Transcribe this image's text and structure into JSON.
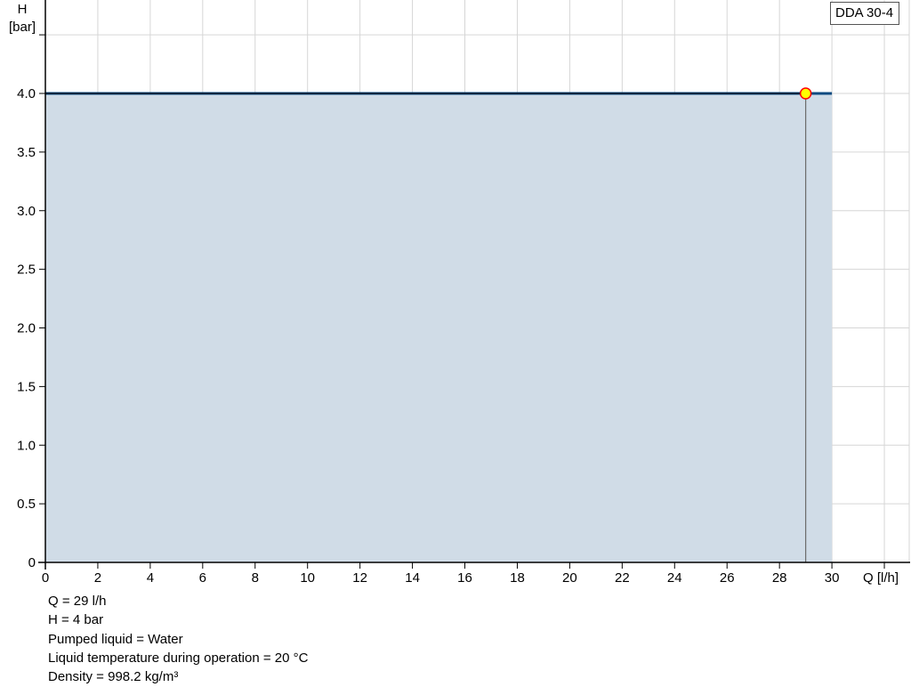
{
  "chart_data": {
    "type": "area",
    "xlabel": "Q [l/h]",
    "ylabel_line1": "H",
    "ylabel_line2": "[bar]",
    "xlim": [
      0,
      33
    ],
    "ylim": [
      0,
      4.8
    ],
    "xticks": [
      0,
      2,
      4,
      6,
      8,
      10,
      12,
      14,
      16,
      18,
      20,
      22,
      24,
      26,
      28,
      30,
      32
    ],
    "xtick_labels": [
      "0",
      "2",
      "4",
      "6",
      "8",
      "10",
      "12",
      "14",
      "16",
      "18",
      "20",
      "22",
      "24",
      "26",
      "28",
      "30"
    ],
    "yticks": [
      0,
      0.5,
      1.0,
      1.5,
      2.0,
      2.5,
      3.0,
      3.5,
      4.0,
      4.5
    ],
    "ytick_labels": [
      "0",
      "0.5",
      "1.0",
      "1.5",
      "2.0",
      "2.5",
      "3.0",
      "3.5",
      "4.0"
    ],
    "grid": true,
    "legend": "top-right",
    "series": [
      {
        "name": "DDA 30-4",
        "x": [
          0,
          30
        ],
        "y": [
          4.0,
          4.0
        ],
        "color": "#0d4a80",
        "fill": "#d0dce7"
      }
    ],
    "operating_point": {
      "x": 29,
      "y": 4.0,
      "fill": "#ffff00",
      "stroke": "#ff0000"
    }
  },
  "info": [
    "Q = 29 l/h",
    "H = 4 bar",
    "Pumped liquid = Water",
    "Liquid temperature during operation = 20 °C",
    "Density = 998.2 kg/m³"
  ]
}
